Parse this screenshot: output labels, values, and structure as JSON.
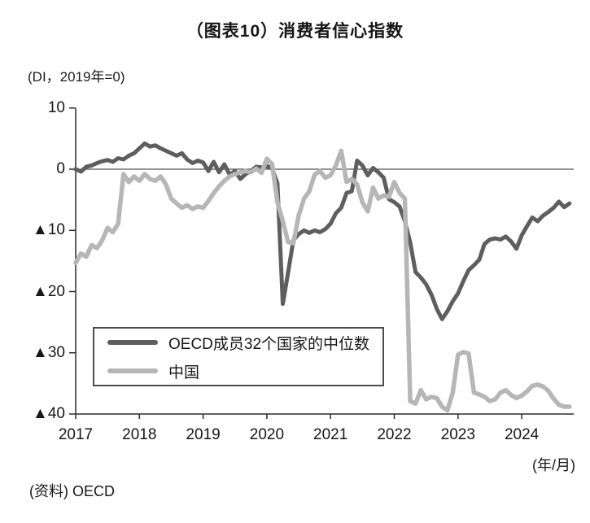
{
  "title": "（图表10）消费者信心指数",
  "axis_unit_label": "(DI，2019年=0)",
  "x_axis_unit_label": "(年/月)",
  "source_note": "(资料) OECD",
  "colors": {
    "oecd_line": "#5e5e5e",
    "china_line": "#b6b6b6",
    "axis": "#2b2b2b",
    "text": "#17171c"
  },
  "legend": {
    "items": [
      {
        "label": "OECD成员32个国家的中位数",
        "series_key": "oecd"
      },
      {
        "label": "中国",
        "series_key": "china"
      }
    ]
  },
  "y_axis": {
    "tick_labels": [
      "10",
      "0",
      "▲10",
      "▲20",
      "▲30",
      "▲40"
    ],
    "tick_values": [
      10,
      0,
      -10,
      -20,
      -30,
      -40
    ]
  },
  "x_axis": {
    "tick_labels": [
      "2017",
      "2018",
      "2019",
      "2020",
      "2021",
      "2022",
      "2023",
      "2024"
    ]
  },
  "chart_data": {
    "type": "line",
    "title": "（图表10）消费者信心指数",
    "ylabel": "DI (2019年=0)",
    "ylim": [
      -40,
      10
    ],
    "x_range": [
      "2017-01",
      "2024-10"
    ],
    "frequency": "monthly",
    "grid": false,
    "legend_position": "lower-left",
    "series": [
      {
        "name": "OECD成员32个国家的中位数",
        "color_key": "oecd_line",
        "values": [
          0.0,
          -0.4,
          0.4,
          0.6,
          1.0,
          1.3,
          1.5,
          1.2,
          1.8,
          1.6,
          2.2,
          2.6,
          3.4,
          4.2,
          3.7,
          3.9,
          3.4,
          3.0,
          2.6,
          2.2,
          2.6,
          1.6,
          1.0,
          1.4,
          1.1,
          -0.3,
          1.2,
          -0.5,
          0.8,
          -0.9,
          -0.3,
          -1.6,
          -0.8,
          -0.3,
          0.4,
          0.3,
          0.5,
          0.1,
          -2.3,
          -22.0,
          -16.9,
          -11.6,
          -10.6,
          -10.0,
          -10.4,
          -10.0,
          -10.3,
          -9.8,
          -8.9,
          -7.2,
          -6.3,
          -3.9,
          -3.6,
          1.4,
          0.6,
          -1.0,
          0.2,
          -0.5,
          -1.4,
          -4.9,
          -5.4,
          -6.1,
          -8.5,
          -12.0,
          -16.8,
          -17.7,
          -18.8,
          -20.5,
          -22.8,
          -24.5,
          -23.2,
          -21.6,
          -20.3,
          -18.3,
          -16.5,
          -15.7,
          -14.8,
          -12.2,
          -11.5,
          -11.3,
          -11.5,
          -11.0,
          -11.8,
          -13.0,
          -10.8,
          -9.3,
          -7.9,
          -8.5,
          -7.6,
          -7.0,
          -6.3,
          -5.3,
          -6.2,
          -5.6
        ]
      },
      {
        "name": "中国",
        "color_key": "china_line",
        "values": [
          -15.3,
          -13.8,
          -14.3,
          -12.4,
          -12.9,
          -11.6,
          -9.6,
          -10.3,
          -8.9,
          -0.8,
          -2.1,
          -1.2,
          -1.9,
          -0.8,
          -1.6,
          -1.9,
          -1.2,
          -2.5,
          -4.8,
          -5.6,
          -6.3,
          -5.9,
          -6.5,
          -6.1,
          -6.3,
          -5.2,
          -3.9,
          -2.8,
          -1.9,
          -1.2,
          -0.8,
          -0.5,
          -0.3,
          -0.5,
          0.1,
          -0.6,
          1.7,
          0.8,
          -5.4,
          -8.5,
          -11.9,
          -12.1,
          -7.6,
          -4.8,
          -3.6,
          -0.9,
          -0.3,
          -1.4,
          -1.0,
          0.6,
          3.0,
          -2.1,
          -1.6,
          -2.5,
          -5.4,
          -6.9,
          -3.0,
          -4.8,
          -4.3,
          -4.5,
          -2.1,
          -3.9,
          -4.8,
          -37.9,
          -38.3,
          -36.1,
          -37.6,
          -37.2,
          -37.4,
          -38.8,
          -39.4,
          -36.5,
          -30.3,
          -29.9,
          -30.1,
          -36.5,
          -36.8,
          -37.2,
          -37.9,
          -37.6,
          -36.5,
          -36.1,
          -36.9,
          -37.4,
          -37.0,
          -36.3,
          -35.4,
          -35.2,
          -35.5,
          -36.2,
          -37.5,
          -38.5,
          -38.8,
          -38.8
        ]
      }
    ]
  }
}
